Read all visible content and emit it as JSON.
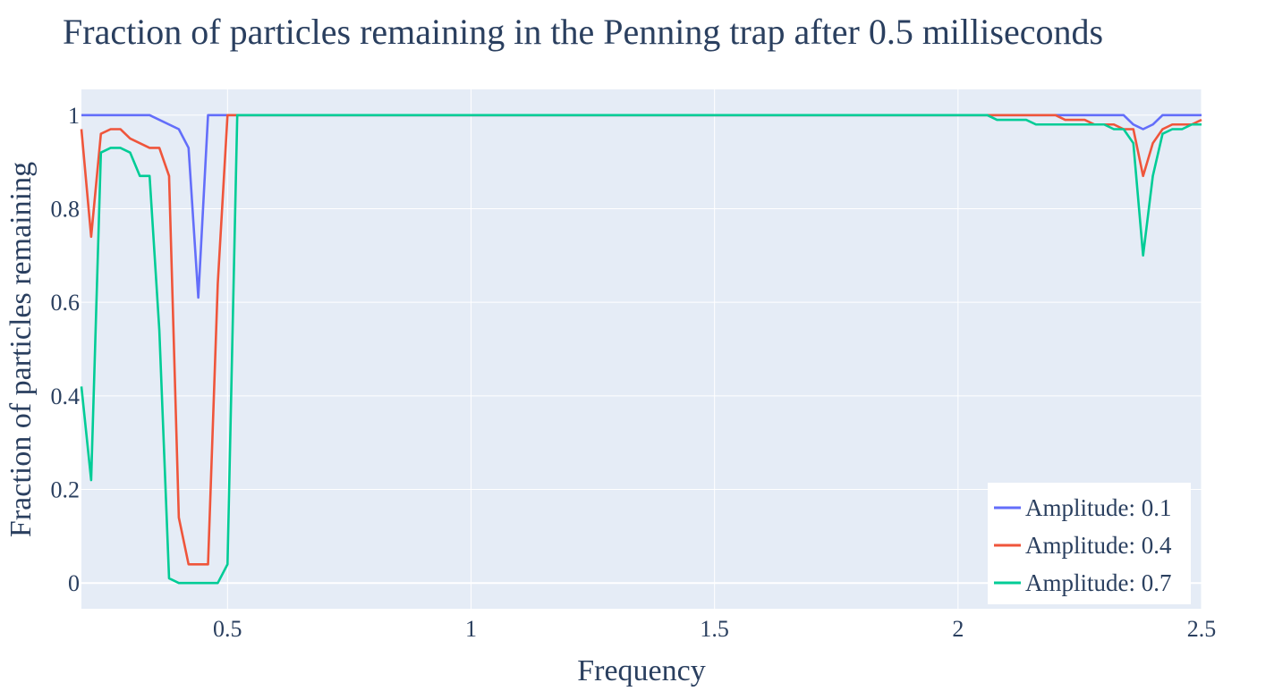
{
  "chart_data": {
    "type": "line",
    "title": "Fraction of particles remaining in the Penning trap after 0.5 milliseconds",
    "xlabel": "Frequency",
    "ylabel": "Fraction of particles remaining",
    "xlim": [
      0.2,
      2.5
    ],
    "ylim": [
      -0.055,
      1.055
    ],
    "xticks": [
      0.5,
      1,
      1.5,
      2,
      2.5
    ],
    "xtick_labels": [
      "0.5",
      "1",
      "1.5",
      "2",
      "2.5"
    ],
    "yticks": [
      0,
      0.2,
      0.4,
      0.6,
      0.8,
      1
    ],
    "ytick_labels": [
      "0",
      "0.2",
      "0.4",
      "0.6",
      "0.8",
      "1"
    ],
    "grid": true,
    "legend_position": "bottom-right",
    "colors": {
      "background": "#E5ECF6",
      "grid": "#ffffff",
      "text": "#2a3f5f"
    },
    "series": [
      {
        "name": "Amplitude: 0.1",
        "color": "#636EFA",
        "points": [
          [
            0.2,
            1
          ],
          [
            0.34,
            1
          ],
          [
            0.4,
            0.97
          ],
          [
            0.42,
            0.93
          ],
          [
            0.44,
            0.61
          ],
          [
            0.46,
            1
          ],
          [
            0.5,
            1
          ],
          [
            2.06,
            1
          ],
          [
            2.34,
            1
          ],
          [
            2.36,
            0.98
          ],
          [
            2.38,
            0.97
          ],
          [
            2.4,
            0.98
          ],
          [
            2.42,
            1
          ],
          [
            2.5,
            1
          ]
        ]
      },
      {
        "name": "Amplitude: 0.4",
        "color": "#EF553B",
        "points": [
          [
            0.2,
            0.97
          ],
          [
            0.22,
            0.74
          ],
          [
            0.24,
            0.96
          ],
          [
            0.26,
            0.97
          ],
          [
            0.28,
            0.97
          ],
          [
            0.3,
            0.95
          ],
          [
            0.34,
            0.93
          ],
          [
            0.36,
            0.93
          ],
          [
            0.38,
            0.87
          ],
          [
            0.4,
            0.14
          ],
          [
            0.42,
            0.04
          ],
          [
            0.46,
            0.04
          ],
          [
            0.48,
            0.64
          ],
          [
            0.5,
            1
          ],
          [
            0.52,
            1
          ],
          [
            2.06,
            1
          ],
          [
            2.08,
            1
          ],
          [
            2.2,
            1
          ],
          [
            2.22,
            0.99
          ],
          [
            2.26,
            0.99
          ],
          [
            2.28,
            0.98
          ],
          [
            2.32,
            0.98
          ],
          [
            2.34,
            0.97
          ],
          [
            2.36,
            0.97
          ],
          [
            2.38,
            0.87
          ],
          [
            2.4,
            0.94
          ],
          [
            2.42,
            0.97
          ],
          [
            2.44,
            0.98
          ],
          [
            2.48,
            0.98
          ],
          [
            2.5,
            0.99
          ]
        ]
      },
      {
        "name": "Amplitude: 0.7",
        "color": "#00CC96",
        "points": [
          [
            0.2,
            0.42
          ],
          [
            0.22,
            0.22
          ],
          [
            0.24,
            0.92
          ],
          [
            0.26,
            0.93
          ],
          [
            0.28,
            0.93
          ],
          [
            0.3,
            0.92
          ],
          [
            0.32,
            0.87
          ],
          [
            0.34,
            0.87
          ],
          [
            0.36,
            0.54
          ],
          [
            0.38,
            0.01
          ],
          [
            0.4,
            0
          ],
          [
            0.48,
            0
          ],
          [
            0.5,
            0.04
          ],
          [
            0.52,
            1
          ],
          [
            2.06,
            1
          ],
          [
            2.08,
            0.99
          ],
          [
            2.14,
            0.99
          ],
          [
            2.16,
            0.98
          ],
          [
            2.3,
            0.98
          ],
          [
            2.32,
            0.97
          ],
          [
            2.34,
            0.97
          ],
          [
            2.36,
            0.94
          ],
          [
            2.38,
            0.7
          ],
          [
            2.4,
            0.87
          ],
          [
            2.42,
            0.96
          ],
          [
            2.44,
            0.97
          ],
          [
            2.46,
            0.97
          ],
          [
            2.48,
            0.98
          ],
          [
            2.5,
            0.98
          ]
        ]
      }
    ]
  }
}
